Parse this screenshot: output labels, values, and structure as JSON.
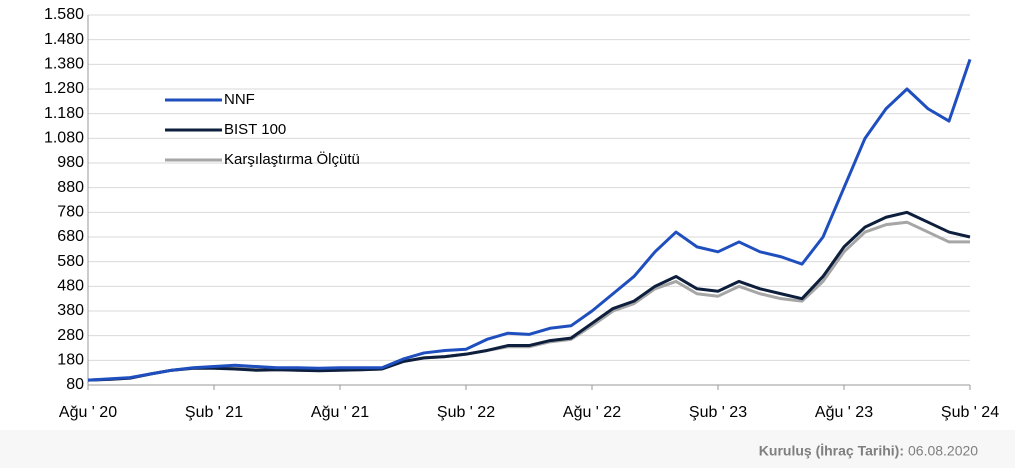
{
  "chart_data": {
    "type": "line",
    "categories": [
      "Ağu ' 20",
      null,
      null,
      null,
      null,
      null,
      "Şub ' 21",
      null,
      null,
      null,
      null,
      null,
      "Ağu ' 21",
      null,
      null,
      null,
      null,
      null,
      "Şub ' 22",
      null,
      null,
      null,
      null,
      null,
      "Ağu ' 22",
      null,
      null,
      null,
      null,
      null,
      "Şub ' 23",
      null,
      null,
      null,
      null,
      null,
      "Ağu ' 23",
      null,
      null,
      null,
      null,
      null,
      "Şub ' 24"
    ],
    "series": [
      {
        "name": "NNF",
        "color": "#1f4fbf",
        "values": [
          100,
          105,
          110,
          125,
          140,
          150,
          155,
          160,
          155,
          150,
          150,
          148,
          150,
          150,
          150,
          185,
          210,
          220,
          225,
          265,
          290,
          285,
          310,
          320,
          380,
          450,
          520,
          620,
          700,
          640,
          620,
          660,
          620,
          600,
          570,
          680,
          880,
          1080,
          1200,
          1280,
          1200,
          1150,
          1400
        ]
      },
      {
        "name": "BIST 100",
        "color": "#0d1f3c",
        "values": [
          100,
          103,
          108,
          125,
          140,
          148,
          148,
          145,
          140,
          142,
          140,
          138,
          140,
          142,
          145,
          175,
          190,
          195,
          205,
          220,
          240,
          240,
          260,
          270,
          330,
          390,
          420,
          480,
          520,
          470,
          460,
          500,
          470,
          450,
          430,
          520,
          640,
          720,
          760,
          780,
          740,
          700,
          680
        ]
      },
      {
        "name": "Karşılaştırma Ölçütü",
        "color": "#a6a6a6",
        "values": [
          100,
          103,
          108,
          125,
          140,
          148,
          150,
          148,
          145,
          145,
          140,
          140,
          142,
          142,
          145,
          175,
          190,
          195,
          205,
          220,
          235,
          235,
          255,
          265,
          320,
          380,
          410,
          470,
          500,
          450,
          440,
          480,
          450,
          430,
          420,
          500,
          620,
          700,
          730,
          740,
          700,
          660,
          660
        ]
      }
    ],
    "ylim": [
      80,
      1580
    ],
    "yticks": [
      80,
      180,
      280,
      380,
      480,
      580,
      680,
      780,
      880,
      980,
      {
        "value": 1080,
        "label": "1.080"
      },
      {
        "value": 1180,
        "label": "1.180"
      },
      {
        "value": 1280,
        "label": "1.280"
      },
      {
        "value": 1380,
        "label": "1.380"
      },
      {
        "value": 1480,
        "label": "1.480"
      },
      {
        "value": 1580,
        "label": "1.580"
      }
    ],
    "grid": true,
    "legend": "left",
    "footnote": {
      "label": "Kuruluş (İhraç Tarihi):",
      "value": "06.08.2020"
    }
  }
}
